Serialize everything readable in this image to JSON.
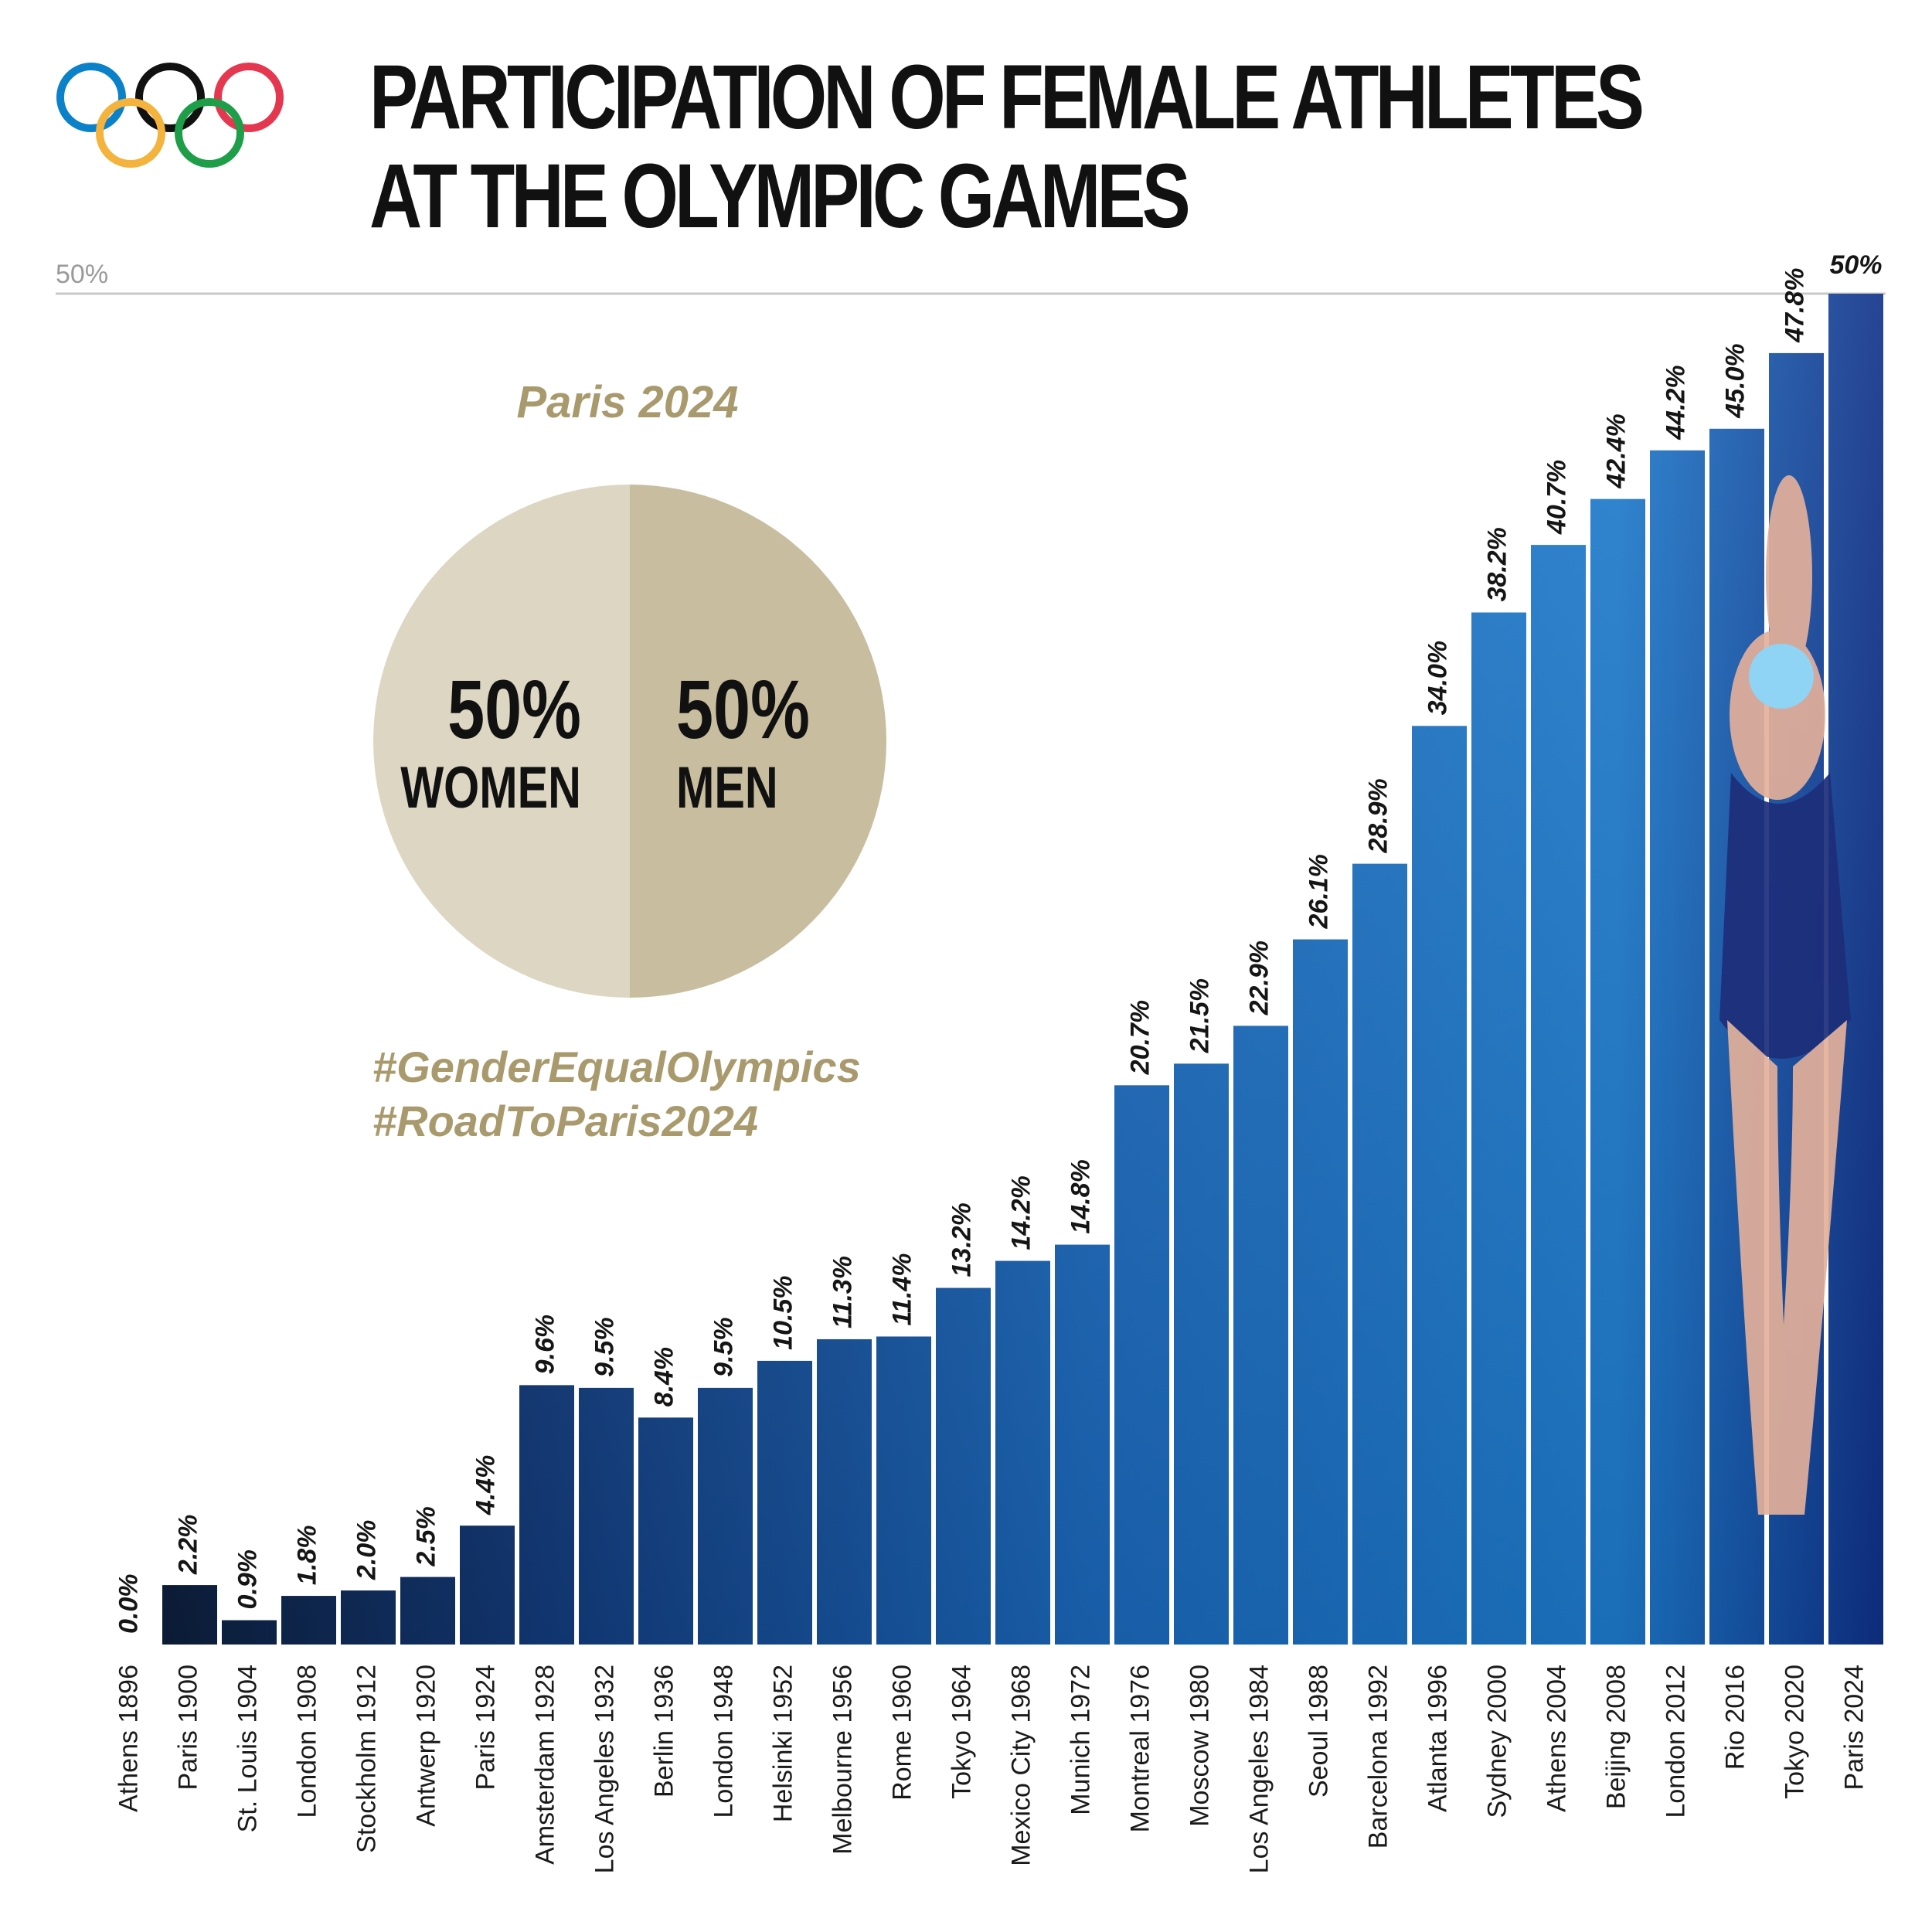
{
  "title": {
    "line1": "PARTICIPATION OF FEMALE ATHLETES",
    "line2": "AT THE OLYMPIC GAMES"
  },
  "rings_colors": [
    "#0a81c8",
    "#111111",
    "#e5374f",
    "#f3b33d",
    "#1e9e49"
  ],
  "colors": {
    "gold": "#a99a6e",
    "pie_women": "#dcd6c3",
    "pie_men": "#c8bd9e",
    "bar_dark": "#0c1a32",
    "bar_mid": "#15428a",
    "bar_light": "#1c77c9"
  },
  "inset": {
    "heading": "Paris 2024",
    "women_pct": "50%",
    "women_label": "WOMEN",
    "men_pct": "50%",
    "men_label": "MEN",
    "hashtag1": "#GenderEqualOlympics",
    "hashtag2": "#RoadToParis2024"
  },
  "chart_data": {
    "type": "bar",
    "title": "PARTICIPATION OF FEMALE ATHLETES AT THE OLYMPIC GAMES",
    "xlabel": "",
    "ylabel": "",
    "ylim": [
      0,
      50
    ],
    "reference_line": {
      "value": 50,
      "label": "50%"
    },
    "grid": false,
    "categories": [
      "Athens 1896",
      "Paris 1900",
      "St. Louis 1904",
      "London 1908",
      "Stockholm 1912",
      "Antwerp 1920",
      "Paris 1924",
      "Amsterdam 1928",
      "Los Angeles 1932",
      "Berlin 1936",
      "London 1948",
      "Helsinki 1952",
      "Melbourne 1956",
      "Rome 1960",
      "Tokyo 1964",
      "Mexico City 1968",
      "Munich 1972",
      "Montreal 1976",
      "Moscow 1980",
      "Los Angeles 1984",
      "Seoul 1988",
      "Barcelona 1992",
      "Atlanta 1996",
      "Sydney 2000",
      "Athens 2004",
      "Beijing 2008",
      "London 2012",
      "Rio 2016",
      "Tokyo 2020",
      "Paris 2024"
    ],
    "values": [
      0.0,
      2.2,
      0.9,
      1.8,
      2.0,
      2.5,
      4.4,
      9.6,
      9.5,
      8.4,
      9.5,
      10.5,
      11.3,
      11.4,
      13.2,
      14.2,
      14.8,
      20.7,
      21.5,
      22.9,
      26.1,
      28.9,
      34.0,
      38.2,
      40.7,
      42.4,
      44.2,
      45.0,
      47.8,
      50
    ],
    "value_labels": [
      "0.0%",
      "2.2%",
      "0.9%",
      "1.8%",
      "2.0%",
      "2.5%",
      "4.4%",
      "9.6%",
      "9.5%",
      "8.4%",
      "9.5%",
      "10.5%",
      "11.3%",
      "11.4%",
      "13.2%",
      "14.2%",
      "14.8%",
      "20.7%",
      "21.5%",
      "22.9%",
      "26.1%",
      "28.9%",
      "34.0%",
      "38.2%",
      "40.7%",
      "42.4%",
      "44.2%",
      "45.0%",
      "47.8%",
      "50%"
    ]
  }
}
